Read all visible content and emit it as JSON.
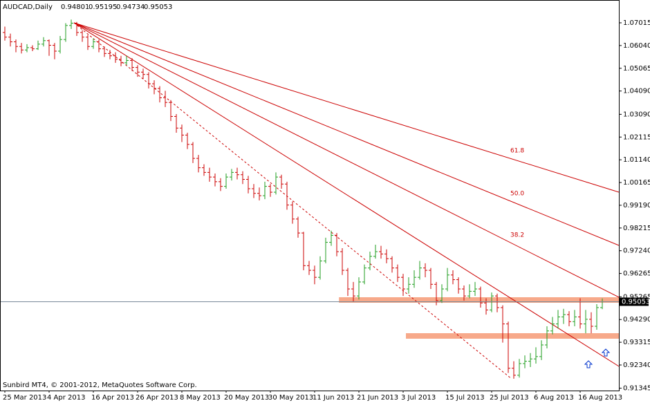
{
  "chart_data": {
    "type": "ohlc",
    "symbol": "AUDCAD,Daily",
    "footer": "Sunbird MT4, © 2001-2012, MetaQuotes Software Corp.",
    "up_color": "#1f9e1f",
    "down_color": "#cc0000",
    "categories": [
      "25 Mar 2013",
      null,
      null,
      null,
      null,
      null,
      null,
      null,
      "4 Apr 2013",
      null,
      null,
      null,
      null,
      null,
      null,
      null,
      "16 Apr 2013",
      null,
      null,
      null,
      null,
      null,
      null,
      null,
      "26 Apr 2013",
      null,
      null,
      null,
      null,
      null,
      null,
      null,
      "8 May 2013",
      null,
      null,
      null,
      null,
      null,
      null,
      null,
      "20 May 2013",
      null,
      null,
      null,
      null,
      null,
      null,
      null,
      "30 May 2013",
      null,
      null,
      null,
      null,
      null,
      null,
      null,
      "11 Jun 2013",
      null,
      null,
      null,
      null,
      null,
      null,
      null,
      "21 Jun 2013",
      null,
      null,
      null,
      null,
      null,
      null,
      null,
      "3 Jul 2013",
      null,
      null,
      null,
      null,
      null,
      null,
      null,
      "15 Jul 2013",
      null,
      null,
      null,
      null,
      null,
      null,
      null,
      "25 Jul 2013",
      null,
      null,
      null,
      null,
      null,
      null,
      null,
      "6 Aug 2013",
      null,
      null,
      null,
      null,
      null,
      null,
      null,
      "16 Aug 2013",
      null,
      null,
      null,
      null
    ],
    "open": [
      1.066,
      1.064,
      1.062,
      1.06,
      1.0585,
      1.0595,
      1.059,
      1.061,
      1.0625,
      1.0605,
      1.058,
      1.063,
      1.069,
      1.07,
      1.066,
      1.064,
      1.06,
      1.062,
      1.059,
      1.057,
      1.056,
      1.0545,
      1.053,
      1.054,
      1.051,
      1.049,
      1.048,
      1.044,
      1.042,
      1.038,
      1.036,
      1.03,
      1.025,
      1.022,
      1.018,
      1.012,
      1.008,
      1.006,
      1.004,
      1.002,
      1.0,
      1.004,
      1.006,
      1.005,
      1.003,
      0.999,
      0.997,
      0.996,
      1.0,
      0.9975,
      1.004,
      1.001,
      0.992,
      0.986,
      0.98,
      0.966,
      0.964,
      0.961,
      0.968,
      0.976,
      0.979,
      0.972,
      0.964,
      0.956,
      0.953,
      0.959,
      0.965,
      0.97,
      0.972,
      0.971,
      0.969,
      0.965,
      0.961,
      0.956,
      0.958,
      0.961,
      0.965,
      0.964,
      0.958,
      0.951,
      0.956,
      0.962,
      0.96,
      0.956,
      0.953,
      0.955,
      0.956,
      0.95,
      0.947,
      0.953,
      0.948,
      0.941,
      0.922,
      0.919,
      0.924,
      0.925,
      0.926,
      0.927,
      0.932,
      0.938,
      0.941,
      0.944,
      0.945,
      0.942,
      0.944,
      0.941,
      0.943,
      0.94,
      0.94801
    ],
    "high": [
      1.0685,
      1.0655,
      1.063,
      1.0615,
      1.061,
      1.0605,
      1.0625,
      1.064,
      1.063,
      1.0615,
      1.0645,
      1.07,
      1.0715,
      1.0705,
      1.067,
      1.065,
      1.0635,
      1.063,
      1.06,
      1.0585,
      1.0575,
      1.056,
      1.056,
      1.055,
      1.052,
      1.0505,
      1.049,
      1.0455,
      1.043,
      1.041,
      1.037,
      1.031,
      1.0265,
      1.023,
      1.019,
      1.0135,
      1.0095,
      1.008,
      1.0055,
      1.0035,
      1.0055,
      1.0075,
      1.008,
      1.0065,
      1.0045,
      1.001,
      0.9995,
      1.002,
      1.001,
      1.006,
      1.005,
      1.002,
      0.9935,
      0.987,
      0.9805,
      0.968,
      0.966,
      0.97,
      0.978,
      0.981,
      0.98,
      0.9735,
      0.965,
      0.959,
      0.961,
      0.9665,
      0.972,
      0.975,
      0.9745,
      0.973,
      0.97,
      0.9665,
      0.9625,
      0.961,
      0.964,
      0.968,
      0.967,
      0.965,
      0.959,
      0.958,
      0.965,
      0.964,
      0.961,
      0.9575,
      0.958,
      0.959,
      0.957,
      0.952,
      0.9545,
      0.954,
      0.949,
      0.942,
      0.925,
      0.926,
      0.9275,
      0.9285,
      0.931,
      0.934,
      0.94,
      0.944,
      0.947,
      0.9475,
      0.9465,
      0.947,
      0.952,
      0.947,
      0.946,
      0.9495,
      0.95195
    ],
    "low": [
      1.0625,
      1.06,
      1.0575,
      1.057,
      1.0575,
      1.058,
      1.0585,
      1.06,
      1.056,
      1.0545,
      1.057,
      1.062,
      1.0675,
      1.0645,
      1.062,
      1.0585,
      1.059,
      1.0575,
      1.0555,
      1.0545,
      1.053,
      1.0515,
      1.052,
      1.0495,
      1.047,
      1.046,
      1.042,
      1.0395,
      1.036,
      1.034,
      1.028,
      1.023,
      1.019,
      1.016,
      1.01,
      1.006,
      1.0045,
      1.002,
      1.0,
      0.998,
      0.999,
      1.0025,
      1.003,
      1.001,
      0.997,
      0.995,
      0.994,
      0.9945,
      0.9955,
      0.9965,
      0.999,
      0.99,
      0.984,
      0.978,
      0.964,
      0.962,
      0.958,
      0.96,
      0.967,
      0.9745,
      0.97,
      0.962,
      0.953,
      0.9505,
      0.9515,
      0.958,
      0.964,
      0.969,
      0.969,
      0.967,
      0.963,
      0.959,
      0.953,
      0.954,
      0.9565,
      0.96,
      0.961,
      0.956,
      0.949,
      0.95,
      0.955,
      0.958,
      0.954,
      0.951,
      0.952,
      0.953,
      0.948,
      0.945,
      0.946,
      0.946,
      0.933,
      0.92,
      0.9175,
      0.918,
      0.922,
      0.9225,
      0.924,
      0.9255,
      0.9305,
      0.9365,
      0.939,
      0.941,
      0.94,
      0.94,
      0.939,
      0.937,
      0.937,
      0.9385,
      0.94734
    ],
    "close": [
      1.064,
      1.062,
      1.06,
      1.0585,
      1.0595,
      1.059,
      1.061,
      1.0625,
      1.0605,
      1.058,
      1.063,
      1.069,
      1.07,
      1.066,
      1.064,
      1.06,
      1.062,
      1.059,
      1.057,
      1.056,
      1.0545,
      1.053,
      1.054,
      1.051,
      1.049,
      1.048,
      1.044,
      1.042,
      1.038,
      1.036,
      1.03,
      1.025,
      1.022,
      1.018,
      1.012,
      1.008,
      1.006,
      1.004,
      1.002,
      1.0,
      1.004,
      1.006,
      1.005,
      1.003,
      0.999,
      0.997,
      0.996,
      1.0,
      0.9975,
      1.004,
      1.001,
      0.992,
      0.986,
      0.98,
      0.966,
      0.964,
      0.961,
      0.968,
      0.976,
      0.979,
      0.972,
      0.964,
      0.956,
      0.953,
      0.959,
      0.965,
      0.97,
      0.972,
      0.971,
      0.969,
      0.965,
      0.961,
      0.956,
      0.958,
      0.961,
      0.965,
      0.964,
      0.958,
      0.951,
      0.956,
      0.962,
      0.96,
      0.956,
      0.953,
      0.955,
      0.956,
      0.95,
      0.947,
      0.953,
      0.948,
      0.941,
      0.922,
      0.919,
      0.924,
      0.925,
      0.926,
      0.927,
      0.932,
      0.938,
      0.941,
      0.944,
      0.945,
      0.942,
      0.944,
      0.941,
      0.943,
      0.94,
      0.948,
      0.95053
    ],
    "ylim": [
      0.91243,
      1.07993
    ],
    "yticks": [
      1.07015,
      {
        "value": 1.0604,
        "label": "1.06040"
      },
      1.05065,
      {
        "value": 1.0409,
        "label": "1.04090"
      },
      {
        "value": 1.0309,
        "label": "1.03090"
      },
      1.02115,
      {
        "value": 1.0114,
        "label": "1.01140"
      },
      1.00165,
      {
        "value": 0.9919,
        "label": "0.99190"
      },
      0.98215,
      {
        "value": 0.9724,
        "label": "0.97240"
      },
      0.96265,
      0.95265,
      {
        "value": 0.9429,
        "label": "0.94290"
      },
      0.93315,
      {
        "value": 0.9234,
        "label": "0.92340"
      },
      0.91345
    ],
    "fan_color": "#cc0000",
    "fan": {
      "origin": {
        "index": 12.5,
        "price": 1.07015
      },
      "lines": [
        {
          "index": 111,
          "price": 0.99751,
          "label": "61.8"
        },
        {
          "index": 111,
          "price": 0.97469,
          "label": "50.0"
        },
        {
          "index": 111,
          "price": 0.95245,
          "label": "38.2"
        },
        {
          "index": 111,
          "price": 0.92281
        },
        {
          "index": 91.6,
          "price": 0.91747,
          "dashed": true
        }
      ]
    },
    "zone_color": "#f7a98a",
    "zones": [
      {
        "price": 0.95127,
        "from": 60.4,
        "to": 111
      },
      {
        "price": 0.93585,
        "from": 72.5,
        "to": 111
      }
    ]
  }
}
